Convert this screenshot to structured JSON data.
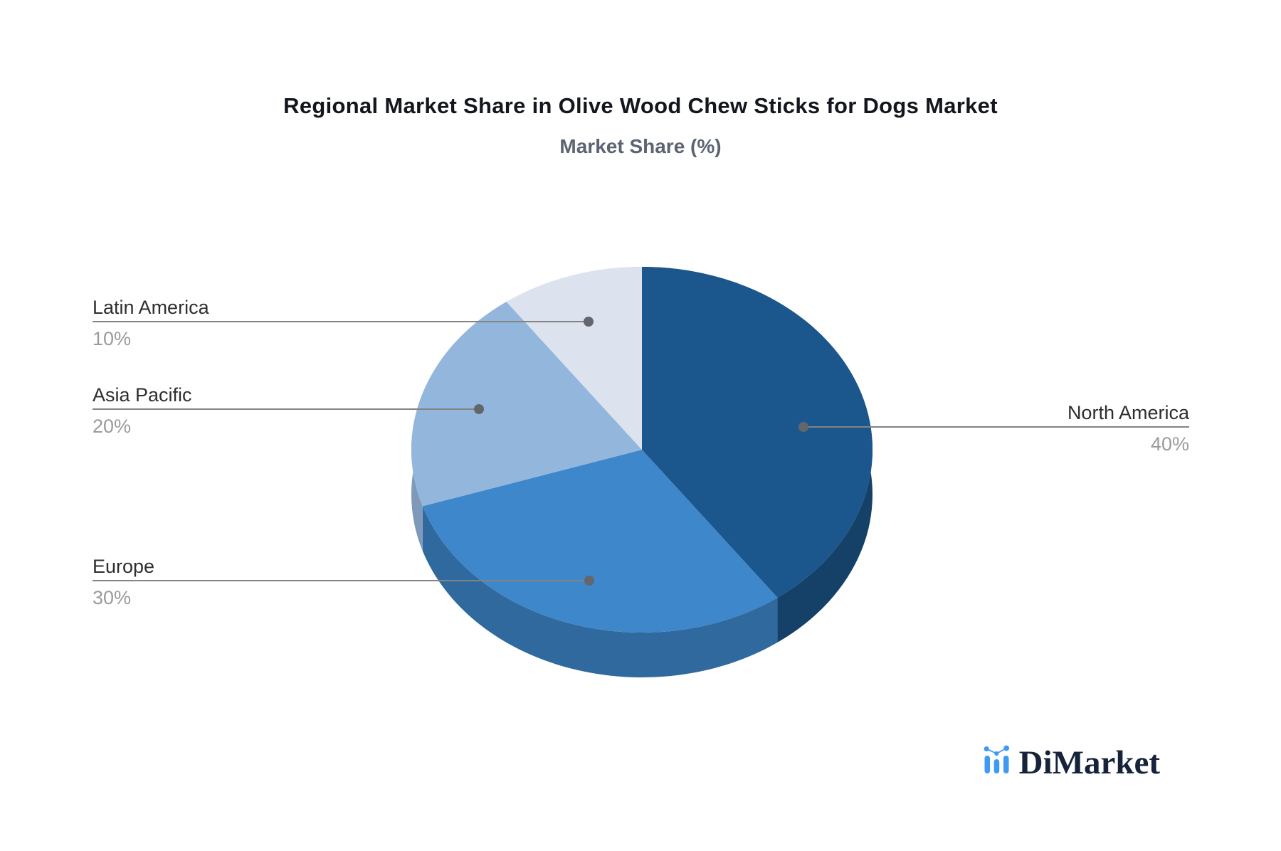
{
  "chart_data": {
    "type": "pie",
    "title": "Regional Market Share in Olive Wood Chew Sticks for Dogs Market",
    "subtitle": "Market Share (%)",
    "unit": "%",
    "effect": "3d",
    "start_angle": "12-oclock",
    "direction": "clockwise",
    "legend_position": "none",
    "label_style": "callout-lines",
    "slices": [
      {
        "label": "North America",
        "value": 40,
        "pct_label": "40%",
        "color": "#1B568C",
        "side_color": "#154068"
      },
      {
        "label": "Europe",
        "value": 30,
        "pct_label": "30%",
        "color": "#3D87CA",
        "side_color": "#30699E"
      },
      {
        "label": "Asia Pacific",
        "value": 20,
        "pct_label": "20%",
        "color": "#93B7DC",
        "side_color": "#7E99BA"
      },
      {
        "label": "Latin America",
        "value": 10,
        "pct_label": "10%",
        "color": "#DDE3EE",
        "side_color": "#C2CCDA"
      }
    ]
  },
  "theme": {
    "background": "#FFFFFF",
    "title_color": "#13161C",
    "subtitle_color": "#5B6470",
    "label_color": "#2E2E2E",
    "percent_color": "#9B9B9B",
    "callout_line_color": "#838383",
    "callout_dot_color": "#63666B",
    "brand_text_color": "#16233A",
    "brand_icon_color": "#3F9BF1"
  },
  "brand": {
    "name": "DiMarket"
  }
}
